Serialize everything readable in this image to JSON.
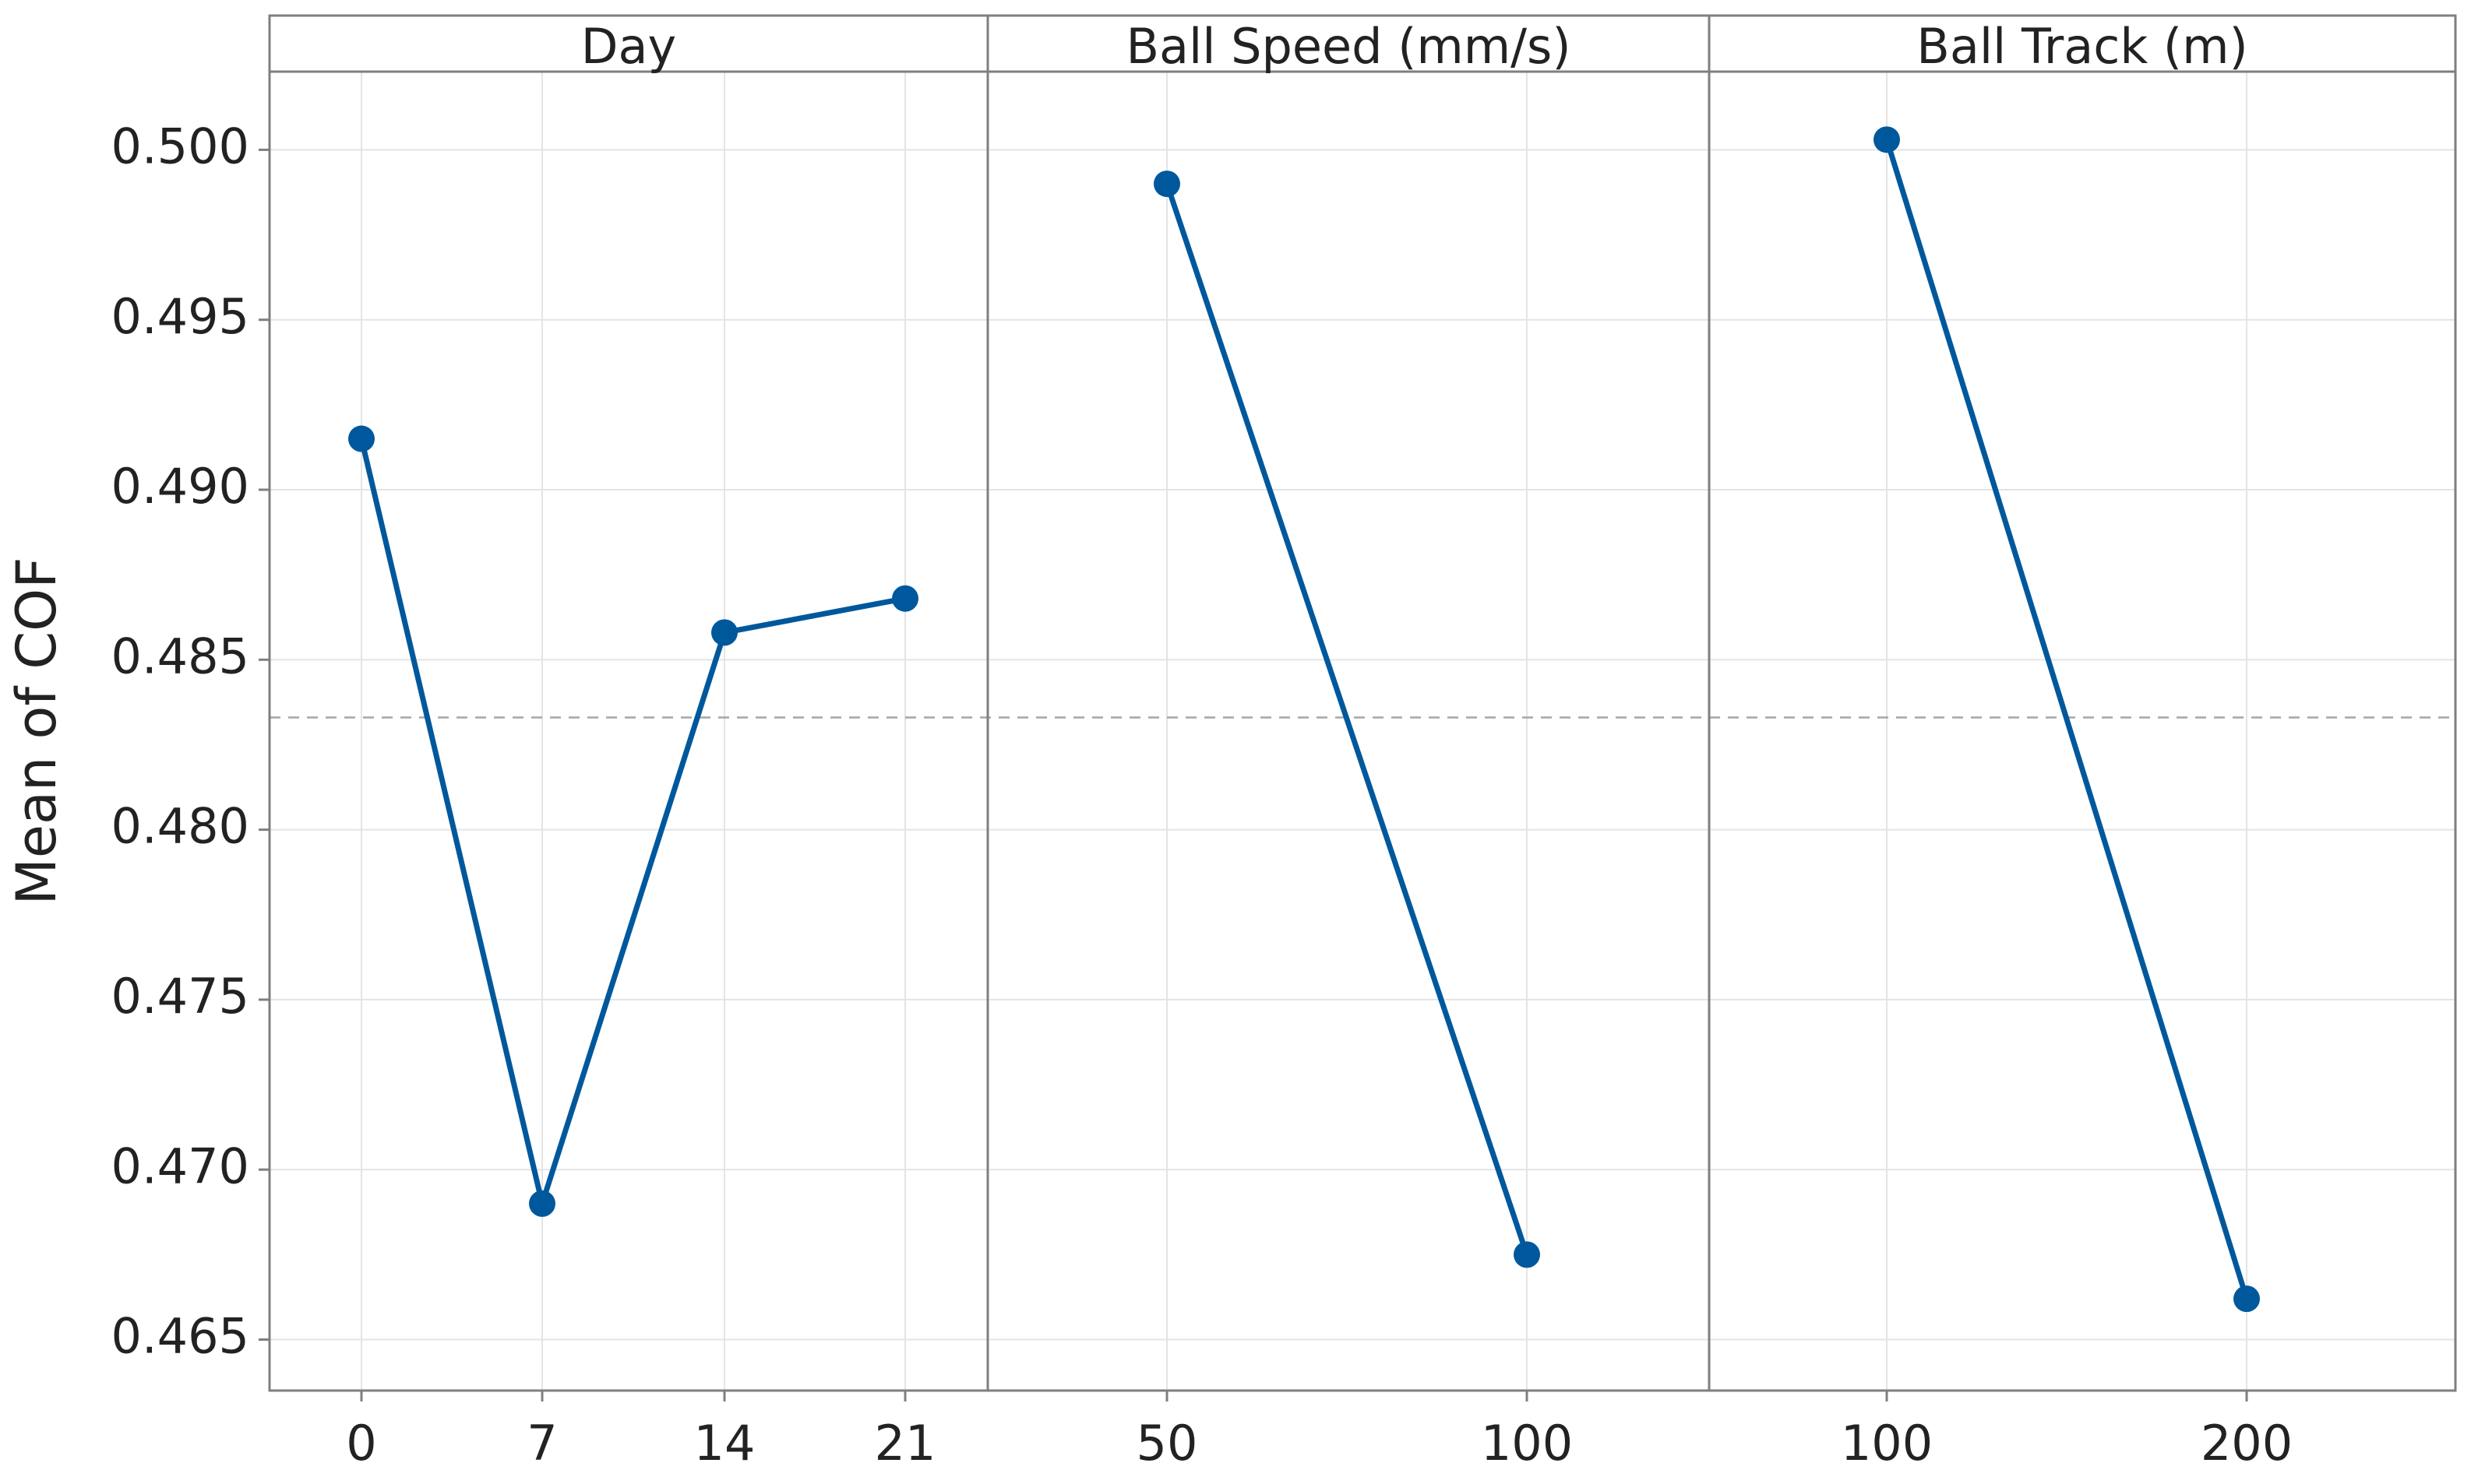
{
  "chart_data": {
    "type": "line",
    "ylabel": "Mean of COF",
    "ylim": [
      0.4635,
      0.5023
    ],
    "y_ticks": [
      "0.465",
      "0.470",
      "0.475",
      "0.480",
      "0.485",
      "0.490",
      "0.495",
      "0.500"
    ],
    "y_tick_values": [
      0.465,
      0.47,
      0.475,
      0.48,
      0.485,
      0.49,
      0.495,
      0.5
    ],
    "overall_mean": 0.4833,
    "grid": true,
    "colors": {
      "line": "#00589c",
      "marker": "#00589c",
      "grid": "#e4e4e4",
      "reference_line": "#a6a6a6",
      "frame": "#7f7f7f"
    },
    "panels": [
      {
        "title": "Day",
        "categories": [
          "0",
          "7",
          "14",
          "21"
        ],
        "values": [
          0.4915,
          0.469,
          0.4858,
          0.4868
        ]
      },
      {
        "title": "Ball Speed (mm/s)",
        "categories": [
          "50",
          "100"
        ],
        "values": [
          0.499,
          0.4675
        ]
      },
      {
        "title": "Ball Track (m)",
        "categories": [
          "100",
          "200"
        ],
        "values": [
          0.5003,
          0.4662
        ]
      }
    ]
  }
}
